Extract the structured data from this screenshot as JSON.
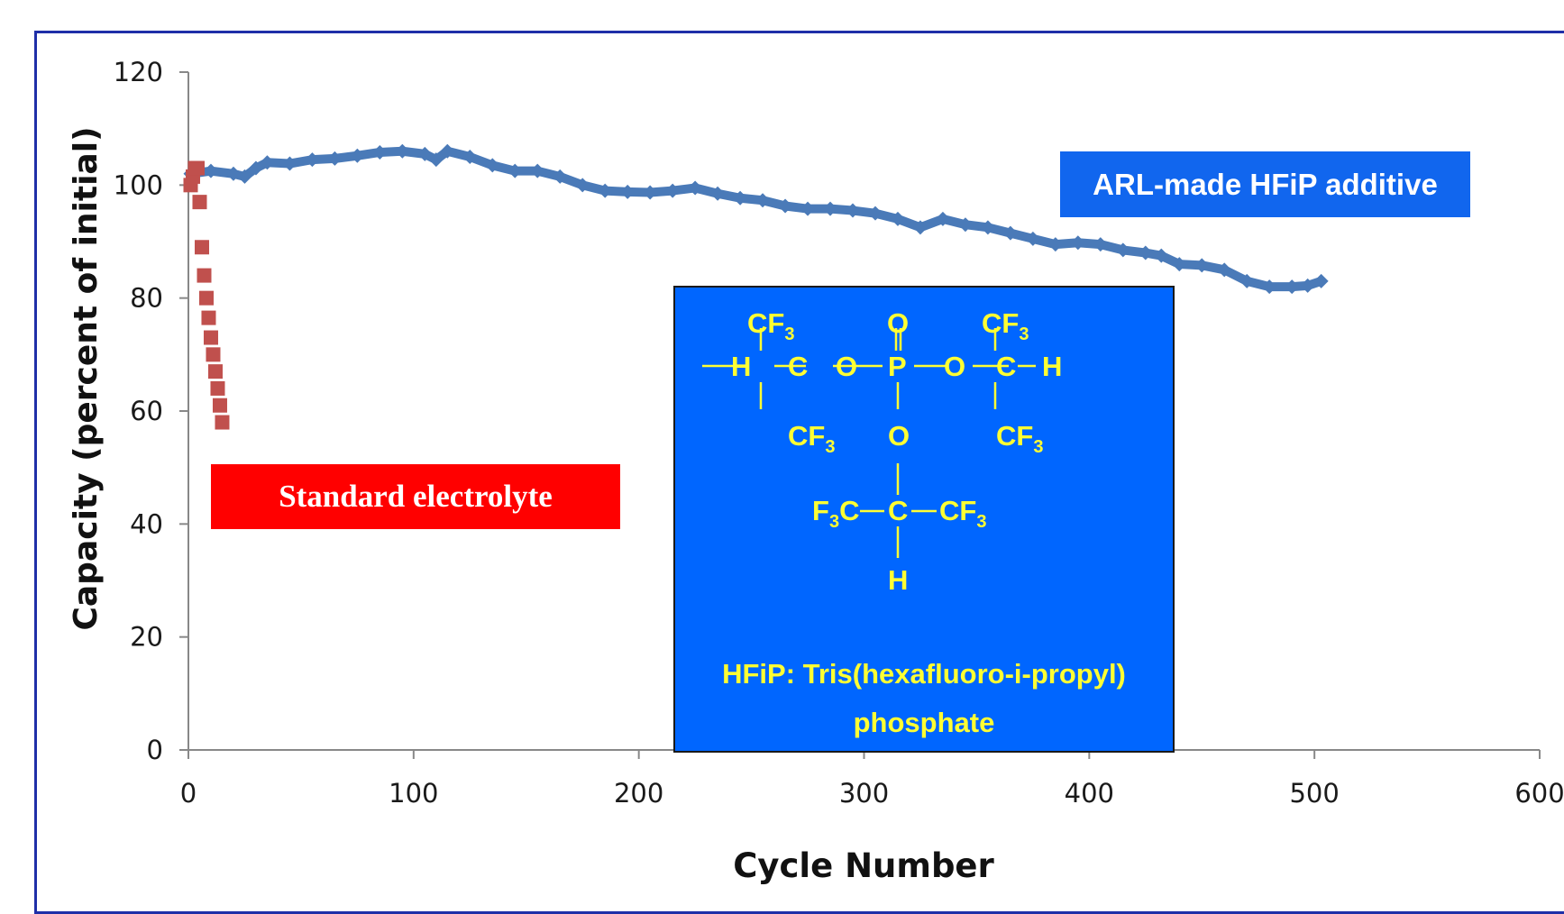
{
  "chart_data": {
    "type": "scatter",
    "title": "",
    "xlabel": "Cycle Number",
    "ylabel": "Capacity (percent of initial)",
    "xlim": [
      0,
      600
    ],
    "ylim": [
      0,
      120
    ],
    "xticks": [
      "0",
      "100",
      "200",
      "300",
      "400",
      "500",
      "600"
    ],
    "yticks": [
      "0",
      "20",
      "40",
      "60",
      "80",
      "100",
      "120"
    ],
    "grid": false,
    "series": [
      {
        "name": "ARL-made HFiP additive",
        "color": "#4a7ab8",
        "marker": "diamond",
        "points": [
          [
            1,
            102
          ],
          [
            10,
            102.5
          ],
          [
            20,
            102
          ],
          [
            25,
            101.5
          ],
          [
            30,
            103
          ],
          [
            35,
            104
          ],
          [
            45,
            103.8
          ],
          [
            55,
            104.5
          ],
          [
            65,
            104.7
          ],
          [
            75,
            105.2
          ],
          [
            85,
            105.8
          ],
          [
            95,
            106
          ],
          [
            105,
            105.5
          ],
          [
            110,
            104.5
          ],
          [
            115,
            106
          ],
          [
            125,
            105
          ],
          [
            135,
            103.5
          ],
          [
            145,
            102.5
          ],
          [
            155,
            102.5
          ],
          [
            165,
            101.5
          ],
          [
            175,
            100
          ],
          [
            185,
            99
          ],
          [
            195,
            98.8
          ],
          [
            205,
            98.7
          ],
          [
            215,
            99
          ],
          [
            225,
            99.5
          ],
          [
            235,
            98.5
          ],
          [
            245,
            97.7
          ],
          [
            255,
            97.3
          ],
          [
            265,
            96.3
          ],
          [
            275,
            95.8
          ],
          [
            285,
            95.8
          ],
          [
            295,
            95.5
          ],
          [
            305,
            95
          ],
          [
            315,
            94
          ],
          [
            325,
            92.5
          ],
          [
            335,
            94
          ],
          [
            345,
            93
          ],
          [
            355,
            92.5
          ],
          [
            365,
            91.5
          ],
          [
            375,
            90.5
          ],
          [
            385,
            89.5
          ],
          [
            395,
            89.8
          ],
          [
            405,
            89.5
          ],
          [
            415,
            88.5
          ],
          [
            425,
            88
          ],
          [
            432,
            87.5
          ],
          [
            440,
            86
          ],
          [
            450,
            85.8
          ],
          [
            460,
            85
          ],
          [
            470,
            83
          ],
          [
            480,
            82
          ],
          [
            490,
            82
          ],
          [
            497,
            82.2
          ],
          [
            503,
            83
          ]
        ]
      },
      {
        "name": "Standard electrolyte",
        "color": "#c0504d",
        "marker": "square",
        "points": [
          [
            1,
            100
          ],
          [
            2,
            101.5
          ],
          [
            3,
            103
          ],
          [
            4,
            103
          ],
          [
            5,
            97
          ],
          [
            6,
            89
          ],
          [
            7,
            84
          ],
          [
            8,
            80
          ],
          [
            9,
            76.5
          ],
          [
            10,
            73
          ],
          [
            11,
            70
          ],
          [
            12,
            67
          ],
          [
            13,
            64
          ],
          [
            14,
            61
          ],
          [
            15,
            58
          ]
        ]
      }
    ]
  },
  "annotations": {
    "standard_label": "Standard  electrolyte",
    "hfip_label": "ARL-made HFiP additive",
    "molecule": {
      "atoms": {
        "cf3_left": "CF",
        "cf3_left_sub": "3",
        "cf3_right": "CF",
        "cf3_right_sub": "3",
        "cf3_bottom_left": "CF",
        "cf3_bottom_left_sub": "3",
        "cf3_bottom_right": "CF",
        "cf3_bottom_right_sub": "3",
        "o_top": "O",
        "h_left": "H",
        "c_left": "C",
        "o_left": "O",
        "p_center": "P",
        "o_right": "O",
        "c_right": "C",
        "h_right": "H",
        "o_bottom": "O",
        "f3c_prefix": "F",
        "f3c_sub": "3",
        "f3c_suffix": "C",
        "c_bottom": "C",
        "cf3_far_right": "CF",
        "cf3_far_right_sub": "3",
        "h_bottom": "H"
      },
      "caption_line1": "HFiP: Tris(hexafluoro-i-propyl)",
      "caption_line2": "phosphate"
    }
  }
}
